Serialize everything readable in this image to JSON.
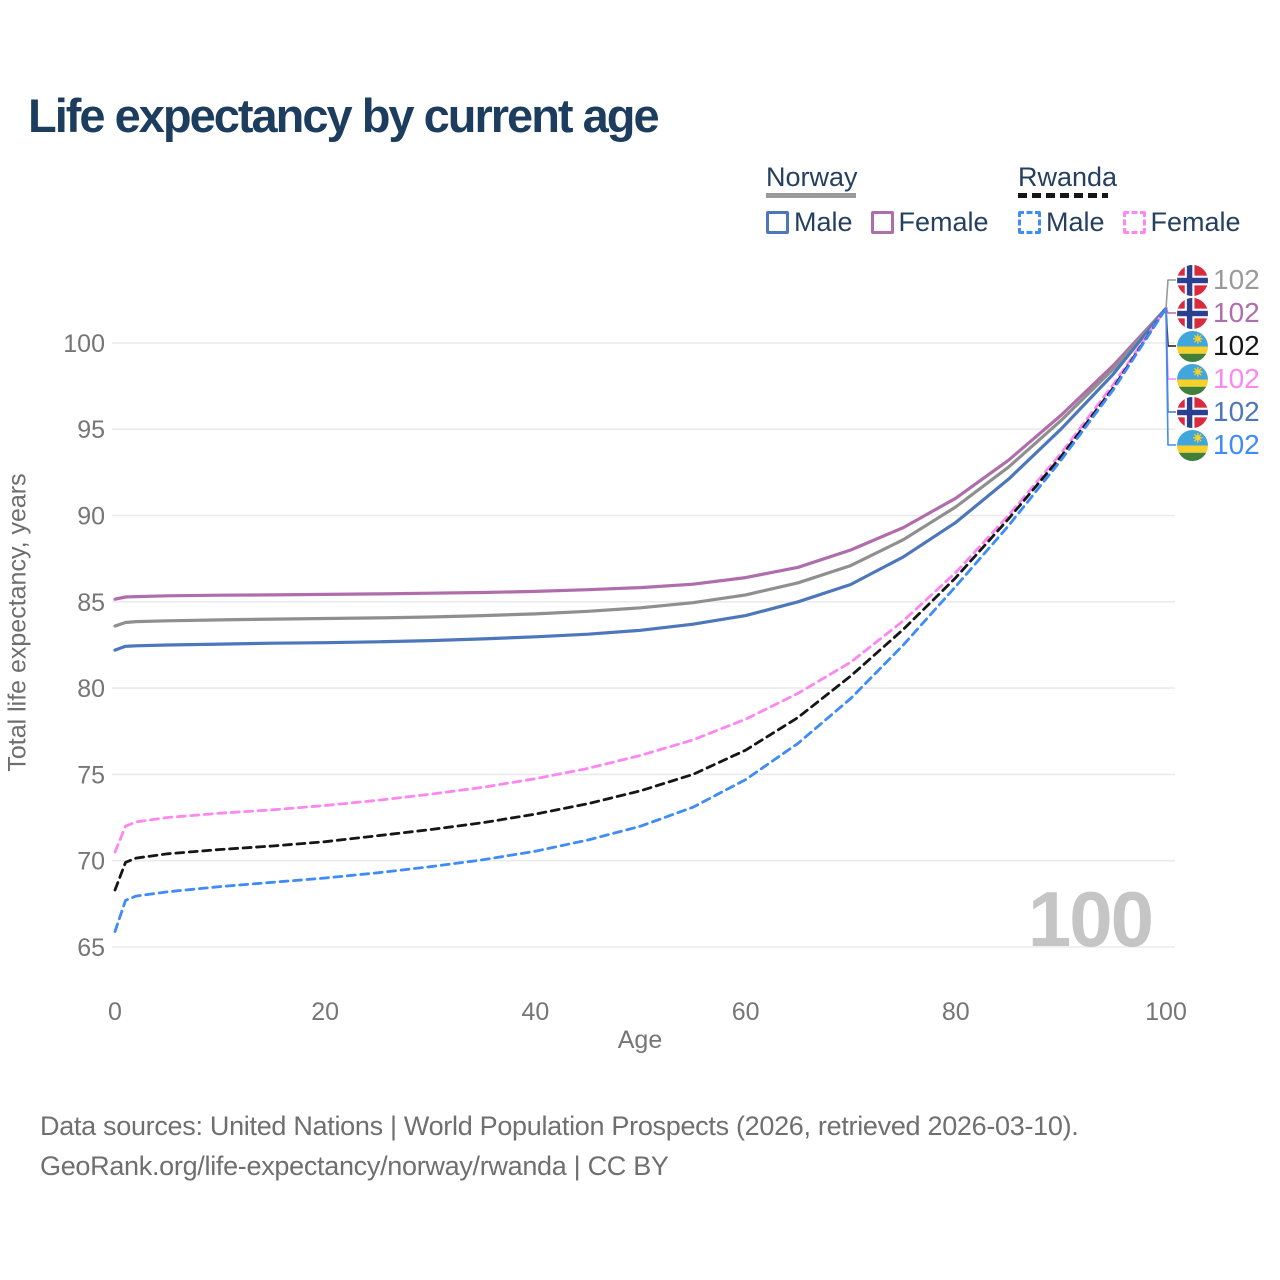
{
  "title": "Life expectancy by current age",
  "legend": {
    "norway": {
      "title": "Norway",
      "male_label": "Male",
      "female_label": "Female",
      "line_color": "#9a9a9a",
      "male_color": "#4d77bb",
      "female_color": "#b06dab",
      "style": "solid"
    },
    "rwanda": {
      "title": "Rwanda",
      "male_label": "Male",
      "female_label": "Female",
      "line_color": "#161616",
      "male_color": "#3f8bf7",
      "female_color": "#fd87f1",
      "style": "dashed"
    }
  },
  "watermark": "100",
  "footer": {
    "line1": "Data sources: United Nations | World Population Prospects (2026, retrieved 2026-03-10).",
    "line2": "GeoRank.org/life-expectancy/norway/rwanda | CC BY"
  },
  "chart_data": {
    "type": "line",
    "title": "Life expectancy by current age",
    "xlabel": "Age",
    "ylabel": "Total life expectancy, years",
    "xlim": [
      0,
      100
    ],
    "ylim": [
      65,
      102
    ],
    "x_ticks": [
      0,
      20,
      40,
      60,
      80,
      100
    ],
    "y_ticks": [
      65,
      70,
      75,
      80,
      85,
      90,
      95,
      100
    ],
    "grid": "horizontal",
    "legend_position": "top-right",
    "x": [
      0,
      1,
      2,
      5,
      10,
      15,
      20,
      25,
      30,
      35,
      40,
      45,
      50,
      55,
      60,
      65,
      70,
      75,
      80,
      85,
      90,
      95,
      100
    ],
    "series": [
      {
        "name": "Norway Female",
        "country": "Norway",
        "sex": "Female",
        "color": "#b06dab",
        "dash": "solid",
        "values": [
          85.15,
          85.28,
          85.3,
          85.35,
          85.38,
          85.4,
          85.43,
          85.46,
          85.5,
          85.54,
          85.6,
          85.7,
          85.82,
          86.02,
          86.4,
          87.0,
          88.0,
          89.3,
          91.0,
          93.2,
          95.8,
          98.7,
          102
        ]
      },
      {
        "name": "Norway (both sexes)",
        "country": "Norway",
        "sex": "All",
        "color": "#8f8f8f",
        "dash": "solid",
        "values": [
          83.6,
          83.8,
          83.85,
          83.9,
          83.95,
          84.0,
          84.03,
          84.07,
          84.12,
          84.2,
          84.3,
          84.45,
          84.65,
          84.95,
          85.4,
          86.1,
          87.1,
          88.6,
          90.5,
          92.8,
          95.5,
          98.5,
          102
        ]
      },
      {
        "name": "Norway Male",
        "country": "Norway",
        "sex": "Male",
        "color": "#4d77bb",
        "dash": "solid",
        "values": [
          82.2,
          82.42,
          82.45,
          82.5,
          82.55,
          82.6,
          82.63,
          82.68,
          82.75,
          82.85,
          82.97,
          83.12,
          83.35,
          83.7,
          84.2,
          85.0,
          86.0,
          87.6,
          89.6,
          92.1,
          95.0,
          98.2,
          102
        ]
      },
      {
        "name": "Rwanda Female",
        "country": "Rwanda",
        "sex": "Female",
        "color": "#fd87f1",
        "dash": "dashed",
        "values": [
          70.5,
          72.0,
          72.25,
          72.5,
          72.75,
          72.95,
          73.2,
          73.5,
          73.85,
          74.25,
          74.75,
          75.35,
          76.1,
          77.0,
          78.2,
          79.7,
          81.5,
          83.9,
          86.7,
          90.0,
          93.6,
          97.6,
          102
        ]
      },
      {
        "name": "Rwanda (both sexes)",
        "country": "Rwanda",
        "sex": "All",
        "color": "#161616",
        "dash": "dashed",
        "values": [
          68.3,
          69.9,
          70.15,
          70.4,
          70.65,
          70.85,
          71.1,
          71.45,
          71.8,
          72.2,
          72.7,
          73.3,
          74.05,
          75.0,
          76.4,
          78.3,
          80.7,
          83.4,
          86.4,
          89.8,
          93.4,
          97.4,
          102
        ]
      },
      {
        "name": "Rwanda Male",
        "country": "Rwanda",
        "sex": "Male",
        "color": "#3f8bf7",
        "dash": "dashed",
        "values": [
          65.9,
          67.7,
          67.95,
          68.2,
          68.5,
          68.75,
          69.0,
          69.3,
          69.65,
          70.05,
          70.55,
          71.2,
          72.0,
          73.1,
          74.7,
          76.8,
          79.4,
          82.5,
          85.9,
          89.4,
          93.2,
          97.3,
          102
        ]
      }
    ],
    "end_labels": [
      {
        "flag": "norway",
        "series": "Norway (both sexes)",
        "value": "102",
        "color": "#9a9a9a"
      },
      {
        "flag": "norway",
        "series": "Norway Female",
        "value": "102",
        "color": "#b06dab"
      },
      {
        "flag": "rwanda",
        "series": "Rwanda (both sexes)",
        "value": "102",
        "color": "#161616"
      },
      {
        "flag": "rwanda",
        "series": "Rwanda Female",
        "value": "102",
        "color": "#fd87f1"
      },
      {
        "flag": "norway",
        "series": "Norway Male",
        "value": "102",
        "color": "#4d77bb"
      },
      {
        "flag": "rwanda",
        "series": "Rwanda Male",
        "value": "102",
        "color": "#3f8bf7"
      }
    ]
  }
}
